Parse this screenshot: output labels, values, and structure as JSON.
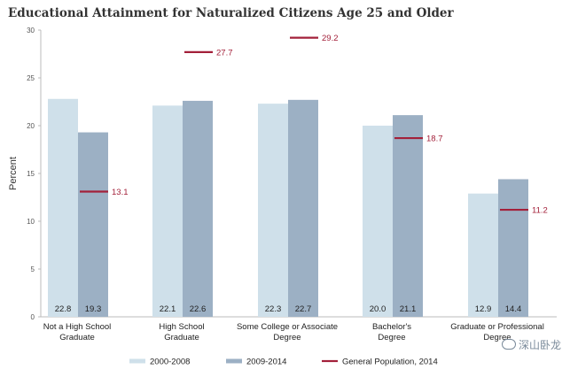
{
  "watermark": {
    "text": "深山卧龙",
    "icon": "wechat-icon"
  },
  "chart_data": {
    "type": "bar",
    "title": "Educational Attainment for Naturalized Citizens Age 25 and Older",
    "ylabel": "Percent",
    "ylim": [
      0,
      30
    ],
    "yticks": [
      0,
      5,
      10,
      15,
      20,
      25,
      30
    ],
    "grid": false,
    "legend_position": "bottom",
    "categories": [
      [
        "Not a High School",
        "Graduate"
      ],
      [
        "High School",
        "Graduate"
      ],
      [
        "Some College or Associate",
        "Degree"
      ],
      [
        "Bachelor's",
        "Degree"
      ],
      [
        "Graduate or Professional",
        "Degree"
      ]
    ],
    "series": [
      {
        "name": "2000-2008",
        "color": "#cfe0ea",
        "values": [
          22.8,
          22.1,
          22.3,
          20.0,
          12.9
        ],
        "labels": [
          "22.8",
          "22.1",
          "22.3",
          "20.0",
          "12.9"
        ]
      },
      {
        "name": "2009-2014",
        "color": "#9cb0c4",
        "values": [
          19.3,
          22.6,
          22.7,
          21.1,
          14.4
        ],
        "labels": [
          "19.3",
          "22.6",
          "22.7",
          "21.1",
          "14.4"
        ]
      }
    ],
    "reference": {
      "name": "General Population, 2014",
      "color": "#a3203a",
      "values": [
        13.1,
        27.7,
        29.2,
        18.7,
        11.2
      ],
      "labels": [
        "13.1",
        "27.7",
        "29.2",
        "18.7",
        "11.2"
      ]
    }
  }
}
